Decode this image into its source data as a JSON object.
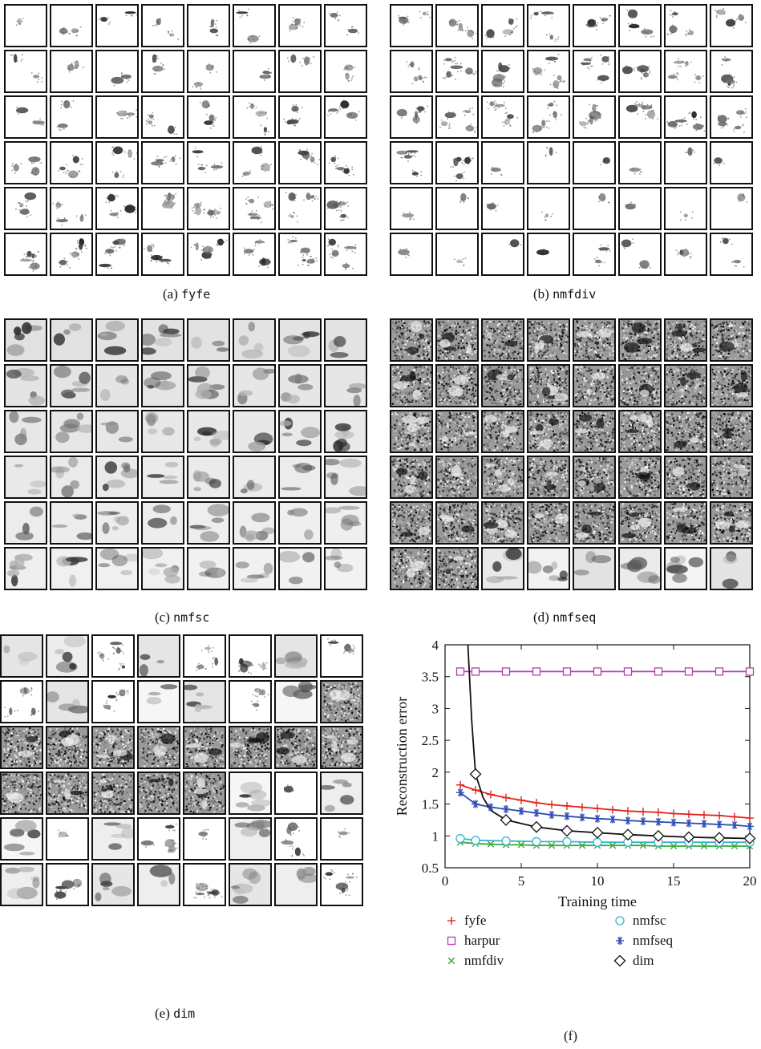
{
  "panels": [
    {
      "label": "(a)",
      "name": "fyfe",
      "style": "sparse"
    },
    {
      "label": "(b)",
      "name": "nmfdiv",
      "style": "sparse"
    },
    {
      "label": "(c)",
      "name": "nmfsc",
      "style": "smooth"
    },
    {
      "label": "(d)",
      "name": "nmfseq",
      "style": "noisy"
    },
    {
      "label": "(e)",
      "name": "dim",
      "style": "mixed"
    }
  ],
  "figure_f": {
    "label": "(f)"
  },
  "chart_data": {
    "type": "line",
    "xlabel": "Training time",
    "ylabel": "Reconstruction error",
    "xlim": [
      0,
      20
    ],
    "ylim": [
      0.5,
      4
    ],
    "xticks": [
      0,
      5,
      10,
      15,
      20
    ],
    "yticks": [
      0.5,
      1,
      1.5,
      2,
      2.5,
      3,
      3.5,
      4
    ],
    "grid": false,
    "legend_position": "below",
    "series": [
      {
        "name": "fyfe",
        "color": "#e0241d",
        "marker": "plus",
        "x": [
          1,
          2,
          3,
          4,
          5,
          6,
          7,
          8,
          9,
          10,
          11,
          12,
          13,
          14,
          15,
          16,
          17,
          18,
          19,
          20
        ],
        "y": [
          1.8,
          1.72,
          1.65,
          1.6,
          1.56,
          1.52,
          1.49,
          1.47,
          1.45,
          1.43,
          1.41,
          1.39,
          1.38,
          1.37,
          1.35,
          1.34,
          1.33,
          1.32,
          1.3,
          1.28
        ]
      },
      {
        "name": "harpur",
        "color": "#b23dae",
        "marker": "square",
        "x": [
          1,
          2,
          4,
          6,
          8,
          10,
          12,
          14,
          16,
          18,
          20
        ],
        "y": [
          3.58,
          3.58,
          3.58,
          3.58,
          3.58,
          3.58,
          3.58,
          3.58,
          3.58,
          3.58,
          3.58
        ]
      },
      {
        "name": "nmfdiv",
        "color": "#3aa83a",
        "marker": "x",
        "x": [
          1,
          2,
          3,
          4,
          5,
          6,
          7,
          8,
          9,
          10,
          11,
          12,
          13,
          14,
          15,
          16,
          17,
          18,
          19,
          20
        ],
        "y": [
          0.9,
          0.88,
          0.87,
          0.86,
          0.86,
          0.85,
          0.85,
          0.85,
          0.85,
          0.85,
          0.85,
          0.85,
          0.85,
          0.84,
          0.84,
          0.84,
          0.84,
          0.84,
          0.84,
          0.84
        ]
      },
      {
        "name": "nmfsc",
        "color": "#34b6cc",
        "marker": "circle",
        "x": [
          1,
          2,
          4,
          6,
          8,
          10,
          12,
          14,
          16,
          18,
          20
        ],
        "y": [
          0.96,
          0.93,
          0.92,
          0.91,
          0.91,
          0.9,
          0.9,
          0.9,
          0.9,
          0.9,
          0.9
        ]
      },
      {
        "name": "nmfseq",
        "color": "#2f4db3",
        "marker": "star",
        "x": [
          1,
          2,
          3,
          4,
          5,
          6,
          7,
          8,
          9,
          10,
          11,
          12,
          13,
          14,
          15,
          16,
          17,
          18,
          19,
          20
        ],
        "y": [
          1.68,
          1.5,
          1.45,
          1.42,
          1.39,
          1.36,
          1.33,
          1.31,
          1.29,
          1.27,
          1.26,
          1.24,
          1.23,
          1.22,
          1.21,
          1.2,
          1.19,
          1.18,
          1.17,
          1.15
        ]
      },
      {
        "name": "dim",
        "color": "#111111",
        "marker": "diamond",
        "x": [
          1.5,
          1.75,
          2,
          2.5,
          3,
          4,
          6,
          8,
          10,
          12,
          14,
          16,
          18,
          20
        ],
        "y": [
          4,
          2.8,
          1.97,
          1.6,
          1.4,
          1.25,
          1.14,
          1.08,
          1.05,
          1.02,
          1.0,
          0.98,
          0.97,
          0.96
        ],
        "marker_x": [
          2,
          4,
          6,
          8,
          10,
          12,
          14,
          16,
          18,
          20
        ]
      }
    ]
  }
}
